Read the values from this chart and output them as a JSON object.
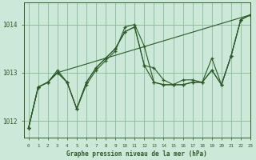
{
  "title": "Graphe pression niveau de la mer (hPa)",
  "background_color": "#cce8d8",
  "grid_color": "#88bb99",
  "line_color": "#2d5a27",
  "marker_color": "#2d5a27",
  "xlim": [
    -0.5,
    23
  ],
  "ylim": [
    1011.65,
    1014.45
  ],
  "yticks": [
    1012,
    1013,
    1014
  ],
  "xtick_labels": [
    "0",
    "1",
    "2",
    "3",
    "4",
    "5",
    "6",
    "7",
    "8",
    "9",
    "10",
    "11",
    "12",
    "13",
    "14",
    "15",
    "16",
    "17",
    "18",
    "19",
    "20",
    "21",
    "22",
    "23"
  ],
  "series": [
    {
      "x": [
        0,
        1,
        2,
        3,
        4,
        5,
        6,
        7,
        8,
        9,
        10,
        11,
        12,
        13,
        14,
        15,
        16,
        17,
        18,
        19,
        20,
        21,
        22,
        23
      ],
      "y": [
        1011.85,
        1012.7,
        1012.8,
        1013.05,
        1012.8,
        1012.25,
        1012.75,
        1013.05,
        1013.25,
        1013.45,
        1013.95,
        1014.0,
        1013.55,
        1012.8,
        1012.75,
        1012.75,
        1012.75,
        1012.8,
        1012.8,
        1013.05,
        1012.75,
        1013.35,
        1014.1,
        1014.2
      ]
    },
    {
      "x": [
        0,
        1,
        2,
        3,
        4,
        5,
        6,
        7,
        8,
        9,
        10,
        11,
        12,
        13,
        14,
        15,
        16,
        17,
        18,
        19,
        20,
        21,
        22,
        23
      ],
      "y": [
        1011.85,
        1012.7,
        1012.8,
        1013.0,
        1012.8,
        1012.25,
        1012.8,
        1013.1,
        1013.3,
        1013.5,
        1013.85,
        1013.95,
        1013.15,
        1013.1,
        1012.85,
        1012.75,
        1012.85,
        1012.85,
        1012.8,
        1013.3,
        1012.75,
        1013.35,
        1014.1,
        1014.2
      ]
    },
    {
      "x": [
        0,
        1,
        2,
        3,
        4,
        5,
        6,
        7,
        8,
        9,
        10,
        11,
        12,
        13,
        14,
        15,
        16,
        17,
        18,
        19,
        20,
        21,
        22,
        23
      ],
      "y": [
        1011.85,
        1012.7,
        1012.8,
        1013.0,
        1012.8,
        1012.25,
        1012.8,
        1013.1,
        1013.3,
        1013.5,
        1013.85,
        1013.95,
        1013.15,
        1012.8,
        1012.75,
        1012.75,
        1012.75,
        1012.8,
        1012.8,
        1013.05,
        1012.75,
        1013.35,
        1014.1,
        1014.2
      ]
    },
    {
      "x": [
        0,
        1,
        2,
        3,
        23
      ],
      "y": [
        1011.85,
        1012.7,
        1012.8,
        1013.0,
        1014.2
      ]
    }
  ]
}
